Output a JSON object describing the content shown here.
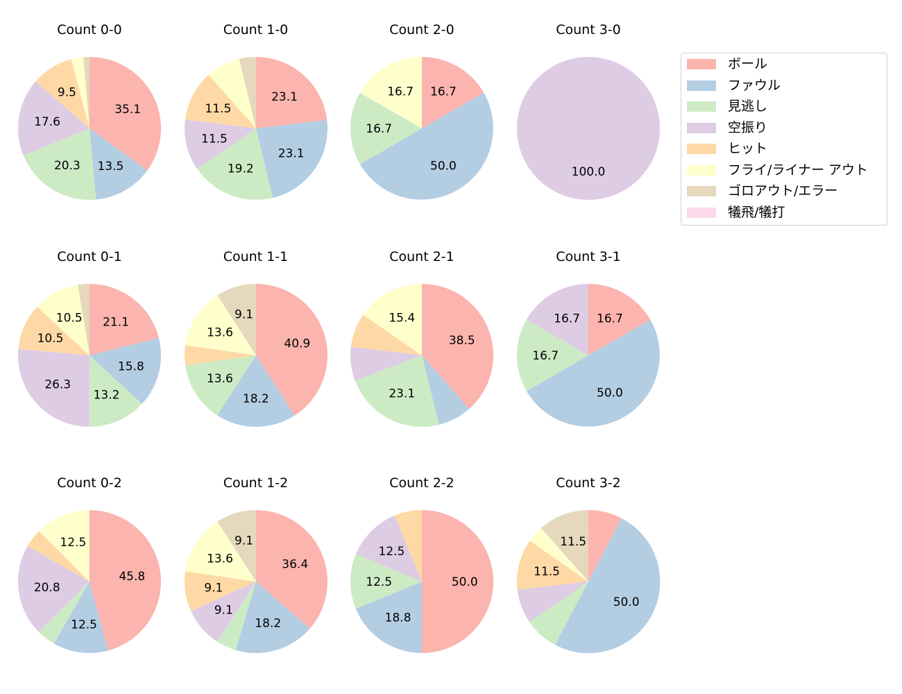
{
  "legend": {
    "items": [
      {
        "label": "ボール",
        "color": "#fbb4ae"
      },
      {
        "label": "ファウル",
        "color": "#b3cde3"
      },
      {
        "label": "見逃し",
        "color": "#ccebc5"
      },
      {
        "label": "空振り",
        "color": "#decbe4"
      },
      {
        "label": "ヒット",
        "color": "#fed9a6"
      },
      {
        "label": "フライ/ライナー アウト",
        "color": "#ffffcc"
      },
      {
        "label": "ゴロアウト/エラー",
        "color": "#e5d8bd"
      },
      {
        "label": "犠飛/犠打",
        "color": "#fddaec"
      }
    ]
  },
  "chart_data": {
    "type": "pie",
    "categories": [
      "ボール",
      "ファウル",
      "見逃し",
      "空振り",
      "ヒット",
      "フライ/ライナー アウト",
      "ゴロアウト/エラー",
      "犠飛/犠打"
    ],
    "colors": [
      "#fbb4ae",
      "#b3cde3",
      "#ccebc5",
      "#decbe4",
      "#fed9a6",
      "#ffffcc",
      "#e5d8bd",
      "#fddaec"
    ],
    "label_threshold": 9,
    "start_angle": 90,
    "direction": "clockwise",
    "legend_position": "upper right",
    "panels": [
      {
        "title": "Count 0-0",
        "row": 0,
        "col": 0,
        "values": [
          35.1,
          13.5,
          20.3,
          17.6,
          9.5,
          2.7,
          1.4,
          0
        ]
      },
      {
        "title": "Count 1-0",
        "row": 0,
        "col": 1,
        "values": [
          23.1,
          23.1,
          19.2,
          11.5,
          11.5,
          7.7,
          3.8,
          0
        ]
      },
      {
        "title": "Count 2-0",
        "row": 0,
        "col": 2,
        "values": [
          16.7,
          50.0,
          16.7,
          0,
          0,
          16.7,
          0,
          0
        ]
      },
      {
        "title": "Count 3-0",
        "row": 0,
        "col": 3,
        "values": [
          0,
          0,
          0,
          100.0,
          0,
          0,
          0,
          0
        ]
      },
      {
        "title": "Count 0-1",
        "row": 1,
        "col": 0,
        "values": [
          21.1,
          15.8,
          13.2,
          26.3,
          10.5,
          10.5,
          2.6,
          0
        ]
      },
      {
        "title": "Count 1-1",
        "row": 1,
        "col": 1,
        "values": [
          40.9,
          18.2,
          13.6,
          0,
          4.5,
          13.6,
          9.1,
          0
        ]
      },
      {
        "title": "Count 2-1",
        "row": 1,
        "col": 2,
        "values": [
          38.5,
          7.7,
          23.1,
          7.7,
          7.7,
          15.4,
          0,
          0
        ]
      },
      {
        "title": "Count 3-1",
        "row": 1,
        "col": 3,
        "values": [
          16.7,
          50.0,
          16.7,
          16.7,
          0,
          0,
          0,
          0
        ]
      },
      {
        "title": "Count 0-2",
        "row": 2,
        "col": 0,
        "values": [
          45.8,
          12.5,
          4.2,
          20.8,
          4.2,
          12.5,
          0,
          0
        ]
      },
      {
        "title": "Count 1-2",
        "row": 2,
        "col": 1,
        "values": [
          36.4,
          18.2,
          4.5,
          9.1,
          9.1,
          13.6,
          9.1,
          0
        ]
      },
      {
        "title": "Count 2-2",
        "row": 2,
        "col": 2,
        "values": [
          50.0,
          18.8,
          12.5,
          12.5,
          6.2,
          0,
          0,
          0
        ]
      },
      {
        "title": "Count 3-2",
        "row": 2,
        "col": 3,
        "values": [
          7.7,
          50.0,
          7.7,
          7.7,
          11.5,
          3.8,
          11.5,
          0
        ]
      }
    ]
  }
}
